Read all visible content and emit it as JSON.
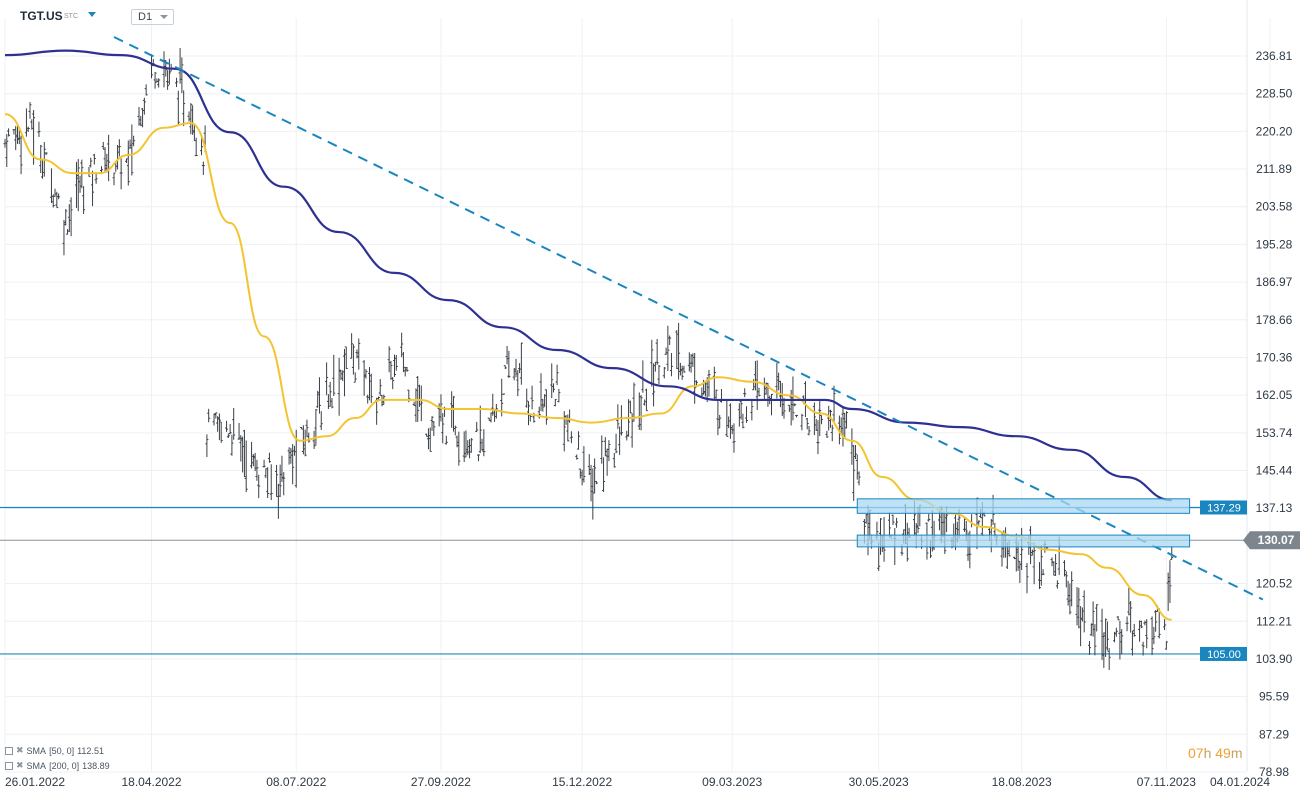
{
  "header": {
    "symbol": "TGT.US",
    "symbol_tag": "STC",
    "timeframe": "D1"
  },
  "legend": [
    {
      "label": "SMA",
      "params": "[50, 0]",
      "value": "112.51",
      "color": "#f4c430"
    },
    {
      "label": "SMA",
      "params": "[200, 0]",
      "value": "138.89",
      "color": "#2e3192"
    }
  ],
  "timer": {
    "hours": "07",
    "hours_unit": "h",
    "minutes": "49",
    "minutes_unit": "m"
  },
  "colors": {
    "sma50": "#f4c430",
    "sma200": "#2e3192",
    "trendline": "#1a86c0",
    "level": "#1a86c0",
    "bars": "#3a3f45",
    "zone_fill": "#a9d8f3",
    "zone_stroke": "#1a86c0"
  },
  "chart_data": {
    "type": "line",
    "title": "",
    "y_ticks": [
      "236.81",
      "228.50",
      "220.20",
      "211.89",
      "203.58",
      "195.28",
      "186.97",
      "178.66",
      "170.36",
      "162.05",
      "153.74",
      "145.44",
      "137.13",
      "120.52",
      "112.21",
      "103.90",
      "95.59",
      "87.29",
      "78.98"
    ],
    "x_ticks": [
      "26.01.2022",
      "18.04.2022",
      "08.07.2022",
      "27.09.2022",
      "15.12.2022",
      "09.03.2023",
      "30.05.2023",
      "18.08.2023",
      "07.11.2023",
      "04.01.2024"
    ],
    "ylim": [
      78.98,
      236.81
    ],
    "x_range": [
      "2022-01-26",
      "2024-01-04"
    ],
    "price_series_anchors": [
      [
        "2022-01-26",
        218
      ],
      [
        "2022-02-10",
        222
      ],
      [
        "2022-03-01",
        200
      ],
      [
        "2022-03-08",
        208
      ],
      [
        "2022-03-22",
        214
      ],
      [
        "2022-04-05",
        213
      ],
      [
        "2022-04-18",
        235
      ],
      [
        "2022-04-28",
        233
      ],
      [
        "2022-05-10",
        225
      ],
      [
        "2022-05-18",
        215
      ],
      [
        "2022-05-19",
        154
      ],
      [
        "2022-06-01",
        155
      ],
      [
        "2022-06-15",
        146
      ],
      [
        "2022-06-27",
        143
      ],
      [
        "2022-07-08",
        149
      ],
      [
        "2022-07-25",
        162
      ],
      [
        "2022-08-08",
        171
      ],
      [
        "2022-08-22",
        161
      ],
      [
        "2022-09-05",
        170
      ],
      [
        "2022-09-20",
        155
      ],
      [
        "2022-10-05",
        156
      ],
      [
        "2022-10-20",
        150
      ],
      [
        "2022-11-01",
        165
      ],
      [
        "2022-11-08",
        168
      ],
      [
        "2022-11-18",
        158
      ],
      [
        "2022-12-01",
        163
      ],
      [
        "2022-12-10",
        151
      ],
      [
        "2022-12-20",
        142
      ],
      [
        "2022-12-30",
        150
      ],
      [
        "2023-01-15",
        158
      ],
      [
        "2023-01-25",
        169
      ],
      [
        "2023-02-03",
        171
      ],
      [
        "2023-02-15",
        168
      ],
      [
        "2023-03-01",
        160
      ],
      [
        "2023-03-09",
        157
      ],
      [
        "2023-03-25",
        163
      ],
      [
        "2023-04-10",
        161
      ],
      [
        "2023-04-25",
        156
      ],
      [
        "2023-05-10",
        157
      ],
      [
        "2023-05-17",
        148
      ],
      [
        "2023-05-22",
        134
      ],
      [
        "2023-06-01",
        130
      ],
      [
        "2023-06-15",
        133
      ],
      [
        "2023-07-01",
        132
      ],
      [
        "2023-07-15",
        133
      ],
      [
        "2023-08-01",
        134
      ],
      [
        "2023-08-18",
        127
      ],
      [
        "2023-08-30",
        125
      ],
      [
        "2023-09-10",
        123
      ],
      [
        "2023-09-25",
        109
      ],
      [
        "2023-10-05",
        108
      ],
      [
        "2023-10-15",
        112
      ],
      [
        "2023-10-25",
        110
      ],
      [
        "2023-11-02",
        112
      ],
      [
        "2023-11-07",
        109
      ],
      [
        "2023-11-10",
        130
      ]
    ],
    "series": [
      {
        "name": "SMA [50, 0]",
        "points": [
          [
            "2022-01-26",
            224
          ],
          [
            "2022-02-15",
            214
          ],
          [
            "2022-03-05",
            211
          ],
          [
            "2022-03-20",
            211
          ],
          [
            "2022-04-05",
            215
          ],
          [
            "2022-04-25",
            221
          ],
          [
            "2022-05-10",
            222
          ],
          [
            "2022-06-01",
            200
          ],
          [
            "2022-06-20",
            175
          ],
          [
            "2022-07-10",
            152
          ],
          [
            "2022-07-25",
            153
          ],
          [
            "2022-08-10",
            157
          ],
          [
            "2022-08-25",
            161
          ],
          [
            "2022-09-15",
            161
          ],
          [
            "2022-10-01",
            159
          ],
          [
            "2022-10-20",
            159
          ],
          [
            "2022-11-10",
            158
          ],
          [
            "2022-12-01",
            157
          ],
          [
            "2022-12-20",
            156
          ],
          [
            "2023-01-10",
            157
          ],
          [
            "2023-01-28",
            158
          ],
          [
            "2023-02-15",
            164
          ],
          [
            "2023-03-01",
            166
          ],
          [
            "2023-03-20",
            165
          ],
          [
            "2023-04-10",
            162
          ],
          [
            "2023-04-28",
            158
          ],
          [
            "2023-05-15",
            152
          ],
          [
            "2023-06-01",
            144
          ],
          [
            "2023-06-20",
            139
          ],
          [
            "2023-07-10",
            136
          ],
          [
            "2023-07-28",
            133
          ],
          [
            "2023-08-15",
            131
          ],
          [
            "2023-09-01",
            128
          ],
          [
            "2023-09-20",
            127
          ],
          [
            "2023-10-05",
            124
          ],
          [
            "2023-10-25",
            118
          ],
          [
            "2023-11-10",
            112.51
          ]
        ]
      },
      {
        "name": "SMA [200, 0]",
        "points": [
          [
            "2022-01-26",
            237
          ],
          [
            "2022-03-01",
            238
          ],
          [
            "2022-04-01",
            237
          ],
          [
            "2022-05-01",
            234
          ],
          [
            "2022-06-01",
            220
          ],
          [
            "2022-07-01",
            208
          ],
          [
            "2022-08-01",
            198
          ],
          [
            "2022-09-01",
            189
          ],
          [
            "2022-10-01",
            183
          ],
          [
            "2022-11-01",
            177
          ],
          [
            "2022-12-01",
            172
          ],
          [
            "2023-01-01",
            168
          ],
          [
            "2023-02-01",
            164
          ],
          [
            "2023-03-01",
            161
          ],
          [
            "2023-04-01",
            161
          ],
          [
            "2023-04-30",
            161
          ],
          [
            "2023-05-15",
            159
          ],
          [
            "2023-06-15",
            156
          ],
          [
            "2023-07-15",
            155
          ],
          [
            "2023-08-15",
            153
          ],
          [
            "2023-09-15",
            150
          ],
          [
            "2023-10-15",
            144
          ],
          [
            "2023-11-10",
            138.89
          ]
        ]
      }
    ],
    "trendlines": [
      {
        "style": "dashed",
        "from": [
          "2022-03-28",
          241
        ],
        "to": [
          "2023-12-31",
          117
        ]
      }
    ],
    "horizontal_levels": [
      {
        "value": 137.29,
        "label": "137.29"
      },
      {
        "value": 105.0,
        "label": "105.00"
      }
    ],
    "current_price": {
      "value": 130.07,
      "label": "130.07"
    },
    "zones": [
      {
        "from": "2023-05-18",
        "to": "2023-11-20",
        "low": 136.0,
        "high": 139.2
      },
      {
        "from": "2023-05-18",
        "to": "2023-11-20",
        "low": 128.6,
        "high": 131.2
      }
    ],
    "grid": true,
    "legend_position": "bottom-left"
  }
}
